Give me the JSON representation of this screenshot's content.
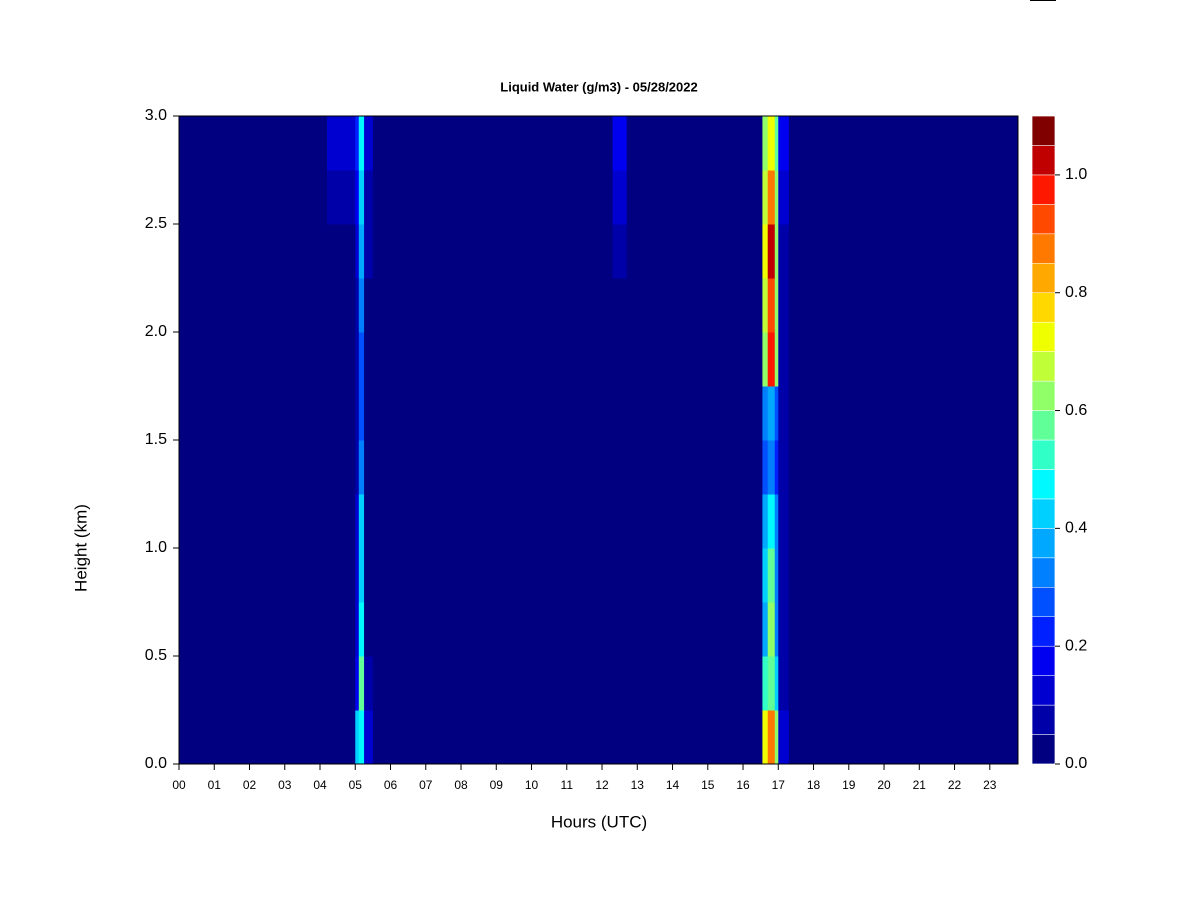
{
  "chart_data": {
    "type": "heatmap",
    "title": "Liquid Water (g/m3) - 05/28/2022",
    "xlabel": "Hours (UTC)",
    "ylabel": "Height (km)",
    "xlim": [
      0,
      23.8
    ],
    "ylim": [
      0,
      3
    ],
    "xticks": [
      {
        "value": 0,
        "label": "00"
      },
      {
        "value": 1,
        "label": "01"
      },
      {
        "value": 2,
        "label": "02"
      },
      {
        "value": 3,
        "label": "03"
      },
      {
        "value": 4,
        "label": "04"
      },
      {
        "value": 5,
        "label": "05"
      },
      {
        "value": 6,
        "label": "06"
      },
      {
        "value": 7,
        "label": "07"
      },
      {
        "value": 8,
        "label": "08"
      },
      {
        "value": 9,
        "label": "09"
      },
      {
        "value": 10,
        "label": "10"
      },
      {
        "value": 11,
        "label": "11"
      },
      {
        "value": 12,
        "label": "12"
      },
      {
        "value": 13,
        "label": "13"
      },
      {
        "value": 14,
        "label": "14"
      },
      {
        "value": 15,
        "label": "15"
      },
      {
        "value": 16,
        "label": "16"
      },
      {
        "value": 17,
        "label": "17"
      },
      {
        "value": 18,
        "label": "18"
      },
      {
        "value": 19,
        "label": "19"
      },
      {
        "value": 20,
        "label": "20"
      },
      {
        "value": 21,
        "label": "21"
      },
      {
        "value": 22,
        "label": "22"
      },
      {
        "value": 23,
        "label": "23"
      }
    ],
    "yticks": [
      {
        "value": 0,
        "label": "0.0"
      },
      {
        "value": 0.5,
        "label": "0.5"
      },
      {
        "value": 1,
        "label": "1.0"
      },
      {
        "value": 1.5,
        "label": "1.5"
      },
      {
        "value": 2,
        "label": "2.0"
      },
      {
        "value": 2.5,
        "label": "2.5"
      },
      {
        "value": 3,
        "label": "3.0"
      }
    ],
    "x_edges": [
      0,
      4.2,
      5.0,
      5.1,
      5.25,
      5.5,
      12.3,
      12.7,
      16.55,
      16.7,
      16.9,
      17.0,
      17.3,
      23.8
    ],
    "y_edges": [
      0,
      0.25,
      0.5,
      0.75,
      1.0,
      1.25,
      1.5,
      1.75,
      2.0,
      2.25,
      2.5,
      2.75,
      3.0
    ],
    "values": [
      [
        0.02,
        0.04,
        0.4,
        0.45,
        0.1,
        0.04,
        0.02,
        0.02,
        0.7,
        0.85,
        0.6,
        0.1,
        0.02
      ],
      [
        0.02,
        0.03,
        0.15,
        0.55,
        0.06,
        0.03,
        0.02,
        0.02,
        0.5,
        0.55,
        0.4,
        0.08,
        0.02
      ],
      [
        0.02,
        0.02,
        0.1,
        0.45,
        0.03,
        0.02,
        0.02,
        0.02,
        0.35,
        0.6,
        0.3,
        0.06,
        0.02
      ],
      [
        0.02,
        0.02,
        0.1,
        0.4,
        0.03,
        0.02,
        0.02,
        0.02,
        0.4,
        0.55,
        0.3,
        0.06,
        0.02
      ],
      [
        0.02,
        0.02,
        0.1,
        0.4,
        0.03,
        0.02,
        0.02,
        0.02,
        0.35,
        0.45,
        0.3,
        0.06,
        0.02
      ],
      [
        0.02,
        0.02,
        0.08,
        0.3,
        0.03,
        0.02,
        0.02,
        0.02,
        0.25,
        0.3,
        0.2,
        0.05,
        0.02
      ],
      [
        0.02,
        0.02,
        0.08,
        0.25,
        0.03,
        0.02,
        0.02,
        0.02,
        0.3,
        0.35,
        0.25,
        0.05,
        0.02
      ],
      [
        0.02,
        0.02,
        0.08,
        0.25,
        0.03,
        0.02,
        0.02,
        0.02,
        0.6,
        0.95,
        0.6,
        0.06,
        0.02
      ],
      [
        0.02,
        0.02,
        0.08,
        0.3,
        0.04,
        0.02,
        0.02,
        0.02,
        0.65,
        0.9,
        0.6,
        0.06,
        0.02
      ],
      [
        0.02,
        0.03,
        0.1,
        0.35,
        0.05,
        0.02,
        0.06,
        0.02,
        0.7,
        1.0,
        0.6,
        0.08,
        0.02
      ],
      [
        0.02,
        0.08,
        0.15,
        0.4,
        0.08,
        0.02,
        0.12,
        0.02,
        0.65,
        0.85,
        0.6,
        0.12,
        0.02
      ],
      [
        0.02,
        0.12,
        0.2,
        0.45,
        0.12,
        0.02,
        0.15,
        0.02,
        0.6,
        0.7,
        0.55,
        0.15,
        0.02
      ]
    ],
    "colorbar": {
      "levels": [
        0,
        0.05,
        0.1,
        0.15,
        0.2,
        0.25,
        0.3,
        0.35,
        0.4,
        0.45,
        0.5,
        0.55,
        0.6,
        0.65,
        0.7,
        0.75,
        0.8,
        0.85,
        0.9,
        0.95,
        1.0,
        1.05,
        1.1
      ],
      "colors": [
        "#000080",
        "#0000a8",
        "#0000d0",
        "#0000f0",
        "#0020ff",
        "#0050ff",
        "#0080ff",
        "#00a8ff",
        "#00d0ff",
        "#00f8ff",
        "#30ffc8",
        "#60ff98",
        "#90ff68",
        "#c0ff38",
        "#f0ff00",
        "#ffd800",
        "#ffa800",
        "#ff7800",
        "#ff4800",
        "#ff1800",
        "#c00000",
        "#800000"
      ],
      "ticks": [
        {
          "value": 0,
          "label": "0.0"
        },
        {
          "value": 0.2,
          "label": "0.2"
        },
        {
          "value": 0.4,
          "label": "0.4"
        },
        {
          "value": 0.6,
          "label": "0.6"
        },
        {
          "value": 0.8,
          "label": "0.8"
        },
        {
          "value": 1,
          "label": "1.0"
        }
      ]
    }
  }
}
